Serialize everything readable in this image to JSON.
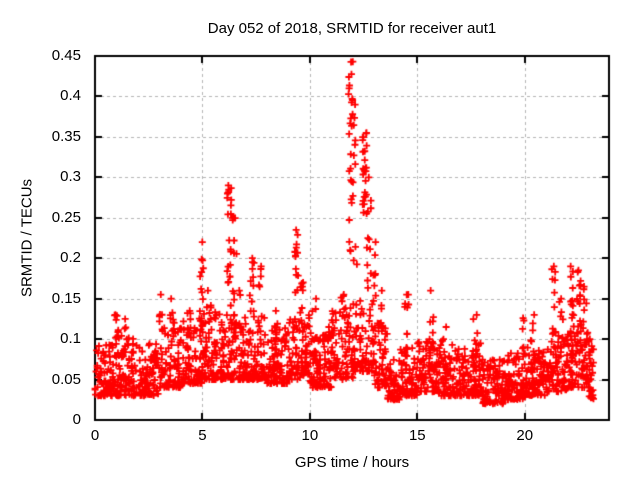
{
  "chart_data": {
    "type": "scatter",
    "title": "Day 052 of 2018, SRMTID for receiver aut1",
    "xlabel": "GPS time / hours",
    "ylabel": "SRMTID / TECUs",
    "series_name": "SRMTID",
    "marker": "plus",
    "grid": true,
    "legend": "none",
    "xlim": [
      0,
      23.92
    ],
    "ylim": [
      0,
      0.45
    ],
    "x_ticks": {
      "values": [
        0,
        5,
        10,
        15,
        20
      ],
      "labels": [
        "0",
        "5",
        "10",
        "15",
        "20"
      ]
    },
    "y_ticks": {
      "values": [
        0,
        0.05,
        0.1,
        0.15,
        0.2,
        0.25,
        0.3,
        0.35,
        0.4,
        0.45
      ],
      "labels": [
        "0",
        "0.05",
        "0.1",
        "0.15",
        "0.2",
        "0.25",
        "0.3",
        "0.35",
        "0.4",
        "0.45"
      ]
    },
    "colors": {
      "marker": "#ff0000",
      "grid": "#b4b4b4",
      "axis": "#000000",
      "background": "#ffffff",
      "text": "#000000"
    },
    "peak": {
      "x": 11.9,
      "y": 0.443
    },
    "data_end_hour": 23.2,
    "baseline_bins": [
      [
        0.0,
        1.0,
        0.03,
        0.095,
        85
      ],
      [
        1.0,
        2.0,
        0.03,
        0.105,
        85
      ],
      [
        2.0,
        3.0,
        0.03,
        0.095,
        85
      ],
      [
        3.0,
        4.0,
        0.04,
        0.115,
        85
      ],
      [
        4.0,
        5.0,
        0.045,
        0.125,
        85
      ],
      [
        5.0,
        6.0,
        0.05,
        0.135,
        85
      ],
      [
        6.0,
        7.0,
        0.05,
        0.13,
        80
      ],
      [
        7.0,
        8.0,
        0.05,
        0.13,
        80
      ],
      [
        8.0,
        9.0,
        0.045,
        0.12,
        85
      ],
      [
        9.0,
        10.0,
        0.05,
        0.13,
        80
      ],
      [
        10.0,
        11.0,
        0.04,
        0.11,
        85
      ],
      [
        11.0,
        12.0,
        0.05,
        0.14,
        75
      ],
      [
        12.0,
        13.0,
        0.06,
        0.15,
        70
      ],
      [
        13.0,
        13.6,
        0.04,
        0.12,
        50
      ],
      [
        13.6,
        14.2,
        0.025,
        0.075,
        55
      ],
      [
        14.2,
        15.0,
        0.03,
        0.09,
        70
      ],
      [
        15.0,
        16.0,
        0.035,
        0.1,
        85
      ],
      [
        16.0,
        17.0,
        0.03,
        0.095,
        85
      ],
      [
        17.0,
        18.0,
        0.03,
        0.1,
        85
      ],
      [
        18.0,
        19.0,
        0.02,
        0.075,
        85
      ],
      [
        19.0,
        20.0,
        0.025,
        0.085,
        85
      ],
      [
        20.0,
        21.0,
        0.03,
        0.09,
        85
      ],
      [
        21.0,
        22.0,
        0.035,
        0.105,
        80
      ],
      [
        22.0,
        23.0,
        0.04,
        0.12,
        70
      ],
      [
        23.0,
        23.2,
        0.025,
        0.09,
        18
      ]
    ],
    "spike_columns": [
      [
        1.0,
        0.09,
        0.13,
        8
      ],
      [
        1.45,
        0.09,
        0.125,
        6
      ],
      [
        3.05,
        0.1,
        0.155,
        6
      ],
      [
        3.6,
        0.09,
        0.15,
        9
      ],
      [
        4.35,
        0.09,
        0.135,
        6
      ],
      [
        4.95,
        0.1,
        0.22,
        16
      ],
      [
        5.3,
        0.09,
        0.16,
        8
      ],
      [
        6.25,
        0.13,
        0.29,
        22
      ],
      [
        6.5,
        0.1,
        0.25,
        12
      ],
      [
        6.8,
        0.08,
        0.16,
        8
      ],
      [
        7.3,
        0.11,
        0.2,
        12
      ],
      [
        7.65,
        0.09,
        0.19,
        9
      ],
      [
        8.35,
        0.08,
        0.135,
        7
      ],
      [
        9.4,
        0.12,
        0.235,
        16
      ],
      [
        9.65,
        0.09,
        0.17,
        8
      ],
      [
        10.2,
        0.07,
        0.15,
        7
      ],
      [
        10.9,
        0.07,
        0.115,
        6
      ],
      [
        11.5,
        0.08,
        0.155,
        9
      ],
      [
        11.9,
        0.2,
        0.443,
        26
      ],
      [
        12.1,
        0.14,
        0.39,
        13
      ],
      [
        12.55,
        0.25,
        0.355,
        26
      ],
      [
        12.75,
        0.14,
        0.3,
        12
      ],
      [
        13.0,
        0.09,
        0.22,
        11
      ],
      [
        13.25,
        0.07,
        0.16,
        7
      ],
      [
        14.5,
        0.07,
        0.155,
        10
      ],
      [
        15.65,
        0.07,
        0.16,
        11
      ],
      [
        16.25,
        0.06,
        0.115,
        6
      ],
      [
        17.7,
        0.06,
        0.13,
        8
      ],
      [
        19.9,
        0.07,
        0.126,
        5
      ],
      [
        20.35,
        0.06,
        0.13,
        8
      ],
      [
        21.35,
        0.09,
        0.19,
        12
      ],
      [
        21.7,
        0.07,
        0.15,
        8
      ],
      [
        22.2,
        0.07,
        0.19,
        22
      ],
      [
        22.5,
        0.09,
        0.185,
        14
      ],
      [
        22.8,
        0.05,
        0.165,
        12
      ],
      [
        23.05,
        0.025,
        0.1,
        10
      ]
    ]
  }
}
